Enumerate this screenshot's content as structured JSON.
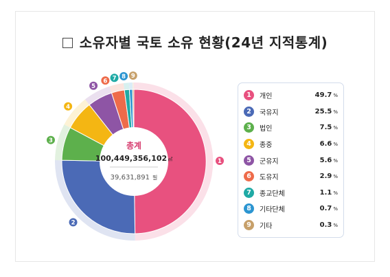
{
  "title": "소유자별 국토 소유 현황(24년 지적통계)",
  "chart_data": {
    "type": "pie",
    "center": {
      "label": "총계",
      "area_value": "100,449,356,102",
      "area_unit": "㎡",
      "parcels_value": "39,631,891",
      "parcels_unit": "필"
    },
    "slices": [
      {
        "num": "1",
        "label": "개인",
        "value": 49.7,
        "value_text": "49.7",
        "unit": "%",
        "color": "#e8517f"
      },
      {
        "num": "2",
        "label": "국유지",
        "value": 25.5,
        "value_text": "25.5",
        "unit": "%",
        "color": "#4b6ab6"
      },
      {
        "num": "3",
        "label": "법인",
        "value": 7.5,
        "value_text": "7.5",
        "unit": "%",
        "color": "#5db04c"
      },
      {
        "num": "4",
        "label": "종중",
        "value": 6.6,
        "value_text": "6.6",
        "unit": "%",
        "color": "#f4b613"
      },
      {
        "num": "5",
        "label": "군유지",
        "value": 5.6,
        "value_text": "5.6",
        "unit": "%",
        "color": "#8e55a5"
      },
      {
        "num": "6",
        "label": "도유지",
        "value": 2.9,
        "value_text": "2.9",
        "unit": "%",
        "color": "#ee6b4a"
      },
      {
        "num": "7",
        "label": "종교단체",
        "value": 1.1,
        "value_text": "1.1",
        "unit": "%",
        "color": "#1faaa5"
      },
      {
        "num": "8",
        "label": "기타단체",
        "value": 0.7,
        "value_text": "0.7",
        "unit": "%",
        "color": "#2c95d1"
      },
      {
        "num": "9",
        "label": "기타",
        "value": 0.3,
        "value_text": "0.3",
        "unit": "%",
        "color": "#c7a06a"
      }
    ]
  }
}
